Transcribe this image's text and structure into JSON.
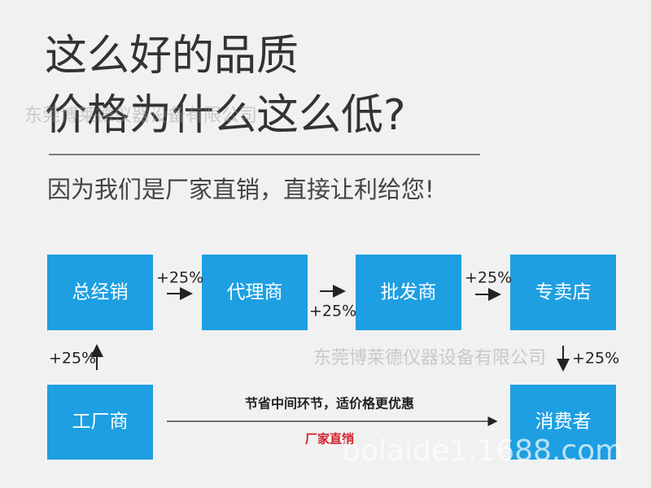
{
  "title": {
    "line1": "这么好的品质",
    "line2": "价格为什么这么低?"
  },
  "subtitle": "因为我们是厂家直销，直接让利给您!",
  "nodes": [
    "总经销",
    "代理商",
    "批发商",
    "专卖店",
    "工厂商",
    "消费者"
  ],
  "markups": [
    "+25%",
    "+25%",
    "+25%",
    "+25%",
    "+25%"
  ],
  "direct": {
    "note": "节省中间环节，适价格更优惠",
    "label": "厂家直销"
  },
  "watermarks": [
    "东莞博莱德仪器设备有限公司",
    "东莞博莱德仪器设备有限公司",
    "bolaide1.1688.com"
  ]
}
